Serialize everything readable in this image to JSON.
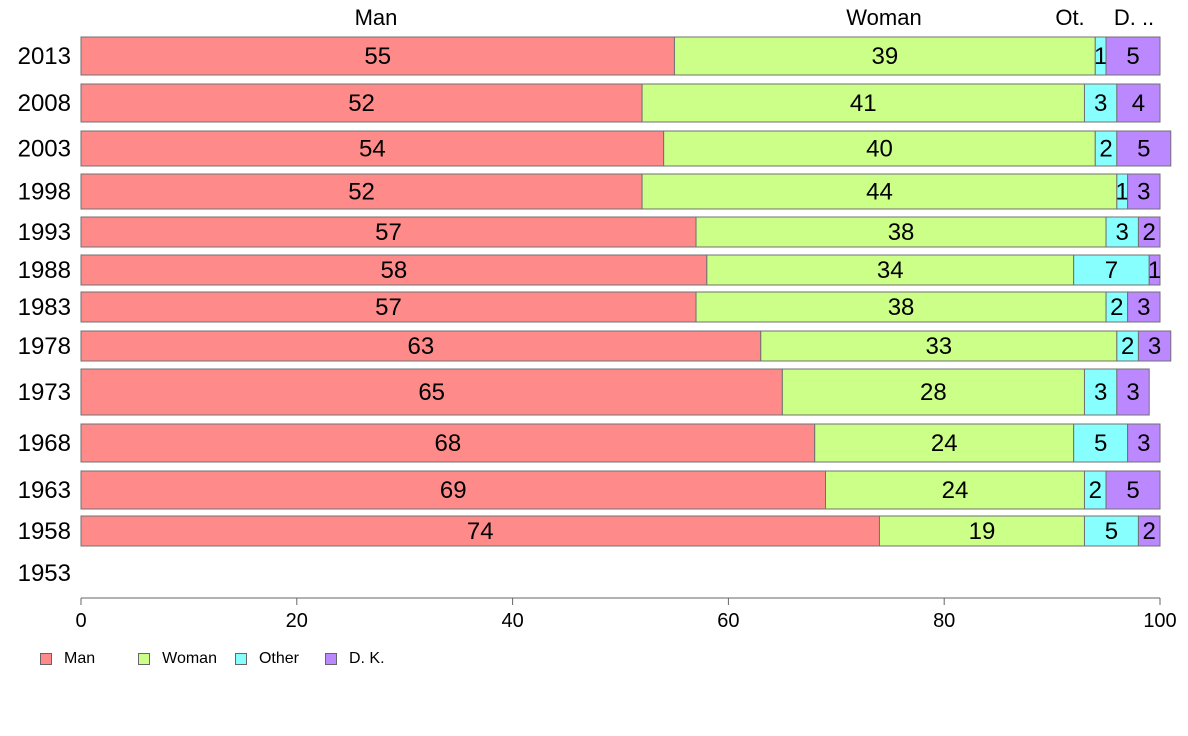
{
  "chart_data": {
    "type": "bar",
    "orientation": "horizontal",
    "stacked": true,
    "categories": [
      "2013",
      "2008",
      "2003",
      "1998",
      "1993",
      "1988",
      "1983",
      "1978",
      "1973",
      "1968",
      "1963",
      "1958",
      "1953"
    ],
    "series": [
      {
        "name": "Man",
        "color": "#ff8a8a",
        "values": [
          55,
          52,
          54,
          52,
          57,
          58,
          57,
          63,
          65,
          68,
          69,
          74,
          null
        ]
      },
      {
        "name": "Woman",
        "color": "#ccff88",
        "values": [
          39,
          41,
          40,
          44,
          38,
          34,
          38,
          33,
          28,
          24,
          24,
          19,
          null
        ]
      },
      {
        "name": "Other",
        "color": "#88ffff",
        "values": [
          1,
          3,
          2,
          1,
          3,
          7,
          2,
          2,
          3,
          5,
          2,
          5,
          null
        ]
      },
      {
        "name": "D. K.",
        "color": "#bb88ff",
        "values": [
          5,
          4,
          5,
          3,
          2,
          1,
          3,
          3,
          3,
          3,
          5,
          2,
          null
        ]
      }
    ],
    "top_labels": [
      "Man",
      "Woman",
      "Ot.",
      "D. .."
    ],
    "xlim": [
      0,
      100
    ],
    "x_ticks": [
      "0",
      "20",
      "40",
      "60",
      "80",
      "100"
    ],
    "legend_position": "bottom-left",
    "grid": false
  }
}
